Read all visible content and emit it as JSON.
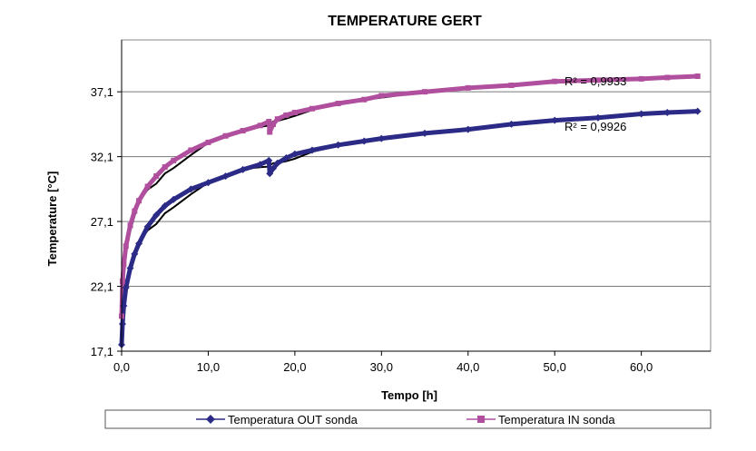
{
  "chart_data": {
    "type": "line",
    "title": "TEMPERATURE GERT",
    "xlabel": "Tempo [h]",
    "ylabel": "Temperature [°C]",
    "xlim": [
      0,
      68
    ],
    "ylim": [
      17.1,
      41.1
    ],
    "xticks": [
      0,
      10,
      20,
      30,
      40,
      50,
      60
    ],
    "xtick_labels": [
      "0,0",
      "10,0",
      "20,0",
      "30,0",
      "40,0",
      "50,0",
      "60,0"
    ],
    "yticks": [
      17.1,
      22.1,
      27.1,
      32.1,
      37.1
    ],
    "ytick_labels": [
      "17,1",
      "22,1",
      "27,1",
      "32,1",
      "37,1"
    ],
    "grid": "horizontal",
    "legend_position": "bottom",
    "series": [
      {
        "name": "Temperatura OUT sonda",
        "color": "#2b2a86",
        "marker": "diamond",
        "x": [
          0,
          0.1,
          0.25,
          0.5,
          1,
          1.5,
          2,
          3,
          4,
          5,
          6,
          8,
          10,
          12,
          14,
          16,
          17,
          17.1,
          17.5,
          18,
          19,
          20,
          22,
          25,
          28,
          30,
          35,
          40,
          45,
          50,
          55,
          60,
          63,
          66.5
        ],
        "y": [
          17.6,
          19.2,
          20.6,
          22.0,
          23.5,
          24.6,
          25.4,
          26.7,
          27.6,
          28.3,
          28.8,
          29.6,
          30.1,
          30.6,
          31.1,
          31.5,
          31.8,
          30.8,
          31.2,
          31.6,
          32.0,
          32.3,
          32.6,
          33.0,
          33.3,
          33.5,
          33.9,
          34.2,
          34.6,
          34.9,
          35.1,
          35.4,
          35.5,
          35.6
        ],
        "trend_r2": "R² = 0,9926"
      },
      {
        "name": "Temperatura IN sonda",
        "color": "#b04f9e",
        "marker": "square",
        "x": [
          0,
          0.1,
          0.25,
          0.5,
          1,
          1.5,
          2,
          3,
          4,
          5,
          6,
          8,
          10,
          12,
          14,
          16,
          17,
          17.1,
          17.5,
          18,
          19,
          20,
          22,
          25,
          28,
          30,
          35,
          40,
          45,
          50,
          55,
          60,
          63,
          66.5
        ],
        "y": [
          19.8,
          22.5,
          23.8,
          25.2,
          26.8,
          27.9,
          28.7,
          29.8,
          30.6,
          31.3,
          31.8,
          32.6,
          33.2,
          33.7,
          34.1,
          34.5,
          34.8,
          34.0,
          34.6,
          35.0,
          35.3,
          35.5,
          35.8,
          36.2,
          36.5,
          36.8,
          37.1,
          37.4,
          37.6,
          37.9,
          38.0,
          38.1,
          38.2,
          38.3
        ],
        "trend_r2": "R² = 0,9933"
      }
    ]
  }
}
